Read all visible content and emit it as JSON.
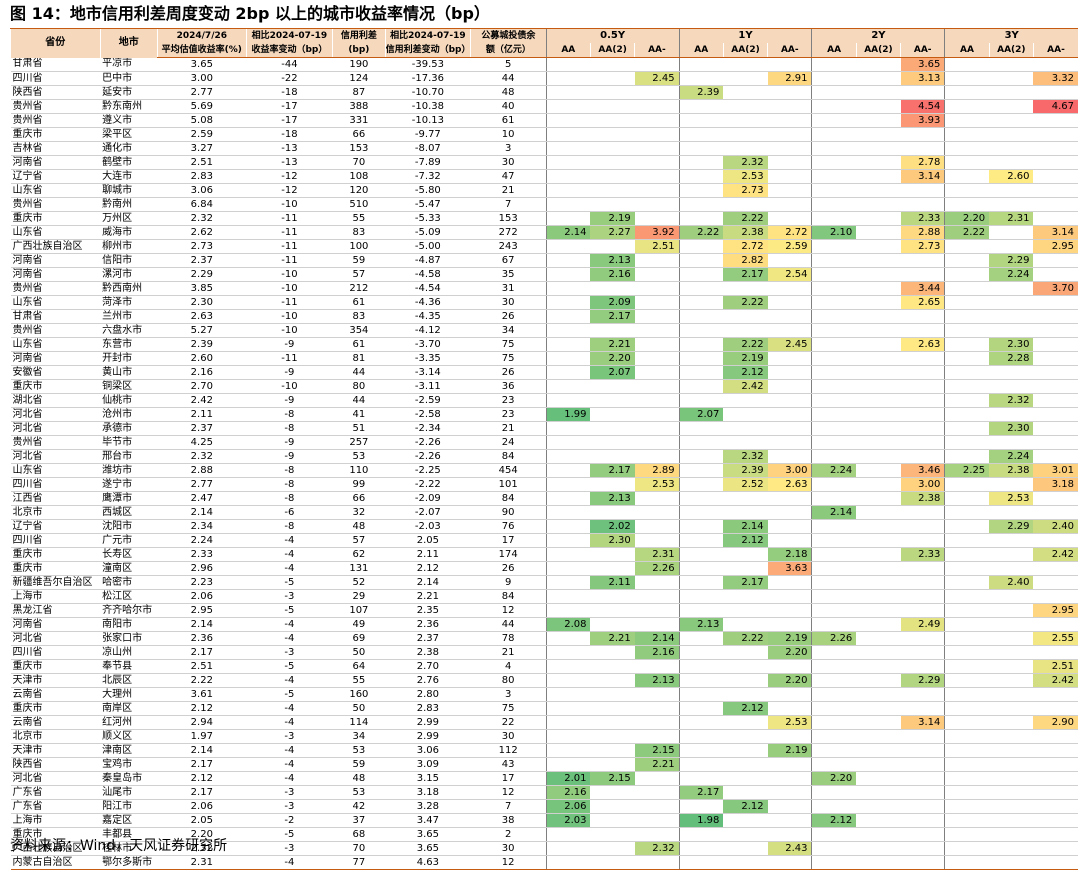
{
  "title": "图 14：地市信用利差周度变动 2bp 以上的城市收益率情况（bp）",
  "source": "资料来源：Wind，天风证券研究所",
  "colors": {
    "header_bg": "#f6d8bd",
    "border": "#c55a11",
    "low": "#63be7b",
    "mid": "#ffeb84",
    "high": "#f8696b"
  },
  "chart_data": {
    "type": "table",
    "headers": {
      "province": "省份",
      "city": "地市",
      "date_col_top": "2024/7/26",
      "yield_col": "平均估值收益率(%)",
      "chg_col_top": "相比2024-07-19",
      "yield_chg_col": "收益率变动（bp）",
      "spread_col_top": "信用利差",
      "spread_col": "(bp)",
      "spread_chg_col_top": "相比2024-07-19",
      "spread_chg_col": "信用利差变动（bp）",
      "bond_bal_col_top": "公募城投债余",
      "bond_bal_col": "额（亿元）",
      "groups": [
        "0.5Y",
        "1Y",
        "2Y",
        "3Y"
      ],
      "ratings": [
        "AA",
        "AA(2)",
        "AA-"
      ]
    },
    "color_scale": {
      "min": 1.98,
      "mid": 2.6,
      "max": 4.67
    },
    "rows": [
      [
        "甘肃省",
        "平凉市",
        3.65,
        -44,
        190,
        -39.53,
        5,
        [
          null,
          null,
          null,
          null,
          null,
          null,
          null,
          null,
          3.65,
          null,
          null,
          null
        ]
      ],
      [
        "四川省",
        "巴中市",
        3.0,
        -22,
        124,
        -17.36,
        44,
        [
          null,
          null,
          2.45,
          null,
          null,
          2.91,
          null,
          null,
          3.13,
          null,
          null,
          3.32
        ]
      ],
      [
        "陕西省",
        "延安市",
        2.77,
        -18,
        87,
        -10.7,
        48,
        [
          null,
          null,
          null,
          2.39,
          null,
          null,
          null,
          null,
          null,
          null,
          null,
          null
        ]
      ],
      [
        "贵州省",
        "黔东南州",
        5.69,
        -17,
        388,
        -10.38,
        40,
        [
          null,
          null,
          null,
          null,
          null,
          null,
          null,
          null,
          4.54,
          null,
          null,
          4.67
        ]
      ],
      [
        "贵州省",
        "遵义市",
        5.08,
        -17,
        331,
        -10.13,
        61,
        [
          null,
          null,
          null,
          null,
          null,
          null,
          null,
          null,
          3.93,
          null,
          null,
          null
        ]
      ],
      [
        "重庆市",
        "梁平区",
        2.59,
        -18,
        66,
        -9.77,
        10,
        [
          null,
          null,
          null,
          null,
          null,
          null,
          null,
          null,
          null,
          null,
          null,
          null
        ]
      ],
      [
        "吉林省",
        "通化市",
        3.27,
        -13,
        153,
        -8.07,
        3,
        [
          null,
          null,
          null,
          null,
          null,
          null,
          null,
          null,
          null,
          null,
          null,
          null
        ]
      ],
      [
        "河南省",
        "鹤壁市",
        2.51,
        -13,
        70,
        -7.89,
        30,
        [
          null,
          null,
          null,
          null,
          2.32,
          null,
          null,
          null,
          2.78,
          null,
          null,
          null
        ]
      ],
      [
        "辽宁省",
        "大连市",
        2.83,
        -12,
        108,
        -7.32,
        47,
        [
          null,
          null,
          null,
          null,
          2.53,
          null,
          null,
          null,
          3.14,
          null,
          2.6,
          null
        ]
      ],
      [
        "山东省",
        "聊城市",
        3.06,
        -12,
        120,
        -5.8,
        21,
        [
          null,
          null,
          null,
          null,
          2.73,
          null,
          null,
          null,
          null,
          null,
          null,
          null
        ]
      ],
      [
        "贵州省",
        "黔南州",
        6.84,
        -10,
        510,
        -5.47,
        7,
        [
          null,
          null,
          null,
          null,
          null,
          null,
          null,
          null,
          null,
          null,
          null,
          null
        ]
      ],
      [
        "重庆市",
        "万州区",
        2.32,
        -11,
        55,
        -5.33,
        153,
        [
          null,
          2.19,
          null,
          null,
          2.22,
          null,
          null,
          null,
          2.33,
          2.2,
          2.31,
          null
        ]
      ],
      [
        "山东省",
        "威海市",
        2.62,
        -11,
        83,
        -5.09,
        272,
        [
          2.14,
          2.27,
          3.92,
          2.22,
          2.38,
          2.72,
          2.1,
          null,
          2.88,
          2.22,
          null,
          3.14
        ]
      ],
      [
        "广西壮族自治区",
        "柳州市",
        2.73,
        -11,
        100,
        -5.0,
        243,
        [
          null,
          null,
          2.51,
          null,
          2.72,
          2.59,
          null,
          null,
          2.73,
          null,
          null,
          2.95
        ]
      ],
      [
        "河南省",
        "信阳市",
        2.37,
        -11,
        59,
        -4.87,
        67,
        [
          null,
          2.13,
          null,
          null,
          2.82,
          null,
          null,
          null,
          null,
          null,
          2.29,
          null
        ]
      ],
      [
        "河南省",
        "漯河市",
        2.29,
        -10,
        57,
        -4.58,
        35,
        [
          null,
          2.16,
          null,
          null,
          2.17,
          2.54,
          null,
          null,
          null,
          null,
          2.24,
          null
        ]
      ],
      [
        "贵州省",
        "黔西南州",
        3.85,
        -10,
        212,
        -4.54,
        31,
        [
          null,
          null,
          null,
          null,
          null,
          null,
          null,
          null,
          3.44,
          null,
          null,
          3.7
        ]
      ],
      [
        "山东省",
        "菏泽市",
        2.3,
        -11,
        61,
        -4.36,
        30,
        [
          null,
          2.09,
          null,
          null,
          2.22,
          null,
          null,
          null,
          2.65,
          null,
          null,
          null
        ]
      ],
      [
        "甘肃省",
        "兰州市",
        2.63,
        -10,
        83,
        -4.35,
        26,
        [
          null,
          2.17,
          null,
          null,
          null,
          null,
          null,
          null,
          null,
          null,
          null,
          null
        ]
      ],
      [
        "贵州省",
        "六盘水市",
        5.27,
        -10,
        354,
        -4.12,
        34,
        [
          null,
          null,
          null,
          null,
          null,
          null,
          null,
          null,
          null,
          null,
          null,
          null
        ]
      ],
      [
        "山东省",
        "东营市",
        2.39,
        -9,
        61,
        -3.7,
        75,
        [
          null,
          2.21,
          null,
          null,
          2.22,
          2.45,
          null,
          null,
          2.63,
          null,
          2.3,
          null
        ]
      ],
      [
        "河南省",
        "开封市",
        2.6,
        -11,
        81,
        -3.35,
        75,
        [
          null,
          2.2,
          null,
          null,
          2.19,
          null,
          null,
          null,
          null,
          null,
          2.28,
          null
        ]
      ],
      [
        "安徽省",
        "黄山市",
        2.16,
        -9,
        44,
        -3.14,
        26,
        [
          null,
          2.07,
          null,
          null,
          2.12,
          null,
          null,
          null,
          null,
          null,
          null,
          null
        ]
      ],
      [
        "重庆市",
        "铜梁区",
        2.7,
        -10,
        80,
        -3.11,
        36,
        [
          null,
          null,
          null,
          null,
          2.42,
          null,
          null,
          null,
          null,
          null,
          null,
          null
        ]
      ],
      [
        "湖北省",
        "仙桃市",
        2.42,
        -9,
        44,
        -2.59,
        23,
        [
          null,
          null,
          null,
          null,
          null,
          null,
          null,
          null,
          null,
          null,
          2.32,
          null
        ]
      ],
      [
        "河北省",
        "沧州市",
        2.11,
        -8,
        41,
        -2.58,
        23,
        [
          1.99,
          null,
          null,
          2.07,
          null,
          null,
          null,
          null,
          null,
          null,
          null,
          null
        ]
      ],
      [
        "河北省",
        "承德市",
        2.37,
        -8,
        51,
        -2.34,
        21,
        [
          null,
          null,
          null,
          null,
          null,
          null,
          null,
          null,
          null,
          null,
          2.3,
          null
        ]
      ],
      [
        "贵州省",
        "毕节市",
        4.25,
        -9,
        257,
        -2.26,
        24,
        [
          null,
          null,
          null,
          null,
          null,
          null,
          null,
          null,
          null,
          null,
          null,
          null
        ]
      ],
      [
        "河北省",
        "邢台市",
        2.32,
        -9,
        53,
        -2.26,
        84,
        [
          null,
          null,
          null,
          null,
          2.32,
          null,
          null,
          null,
          null,
          null,
          2.24,
          null
        ]
      ],
      [
        "山东省",
        "潍坊市",
        2.88,
        -8,
        110,
        -2.25,
        454,
        [
          null,
          2.17,
          2.89,
          null,
          2.39,
          3.0,
          2.24,
          null,
          3.46,
          2.25,
          2.38,
          3.01
        ]
      ],
      [
        "四川省",
        "遂宁市",
        2.77,
        -8,
        99,
        -2.22,
        101,
        [
          null,
          null,
          2.53,
          null,
          2.52,
          2.63,
          null,
          null,
          3.0,
          null,
          null,
          3.18
        ]
      ],
      [
        "江西省",
        "鹰潭市",
        2.47,
        -8,
        66,
        -2.09,
        84,
        [
          null,
          2.13,
          null,
          null,
          null,
          null,
          null,
          null,
          2.38,
          null,
          2.53,
          null
        ]
      ],
      [
        "北京市",
        "西城区",
        2.14,
        -6,
        32,
        -2.07,
        90,
        [
          null,
          null,
          null,
          null,
          null,
          null,
          2.14,
          null,
          null,
          null,
          null,
          null
        ]
      ],
      [
        "辽宁省",
        "沈阳市",
        2.34,
        -8,
        48,
        -2.03,
        76,
        [
          null,
          2.02,
          null,
          null,
          2.14,
          null,
          null,
          null,
          null,
          null,
          2.29,
          2.4
        ]
      ],
      [
        "四川省",
        "广元市",
        2.24,
        -4,
        57,
        2.05,
        17,
        [
          null,
          2.3,
          null,
          null,
          2.12,
          null,
          null,
          null,
          null,
          null,
          null,
          null
        ]
      ],
      [
        "重庆市",
        "长寿区",
        2.33,
        -4,
        62,
        2.11,
        174,
        [
          null,
          null,
          2.31,
          null,
          null,
          2.18,
          null,
          null,
          2.33,
          null,
          null,
          2.42
        ]
      ],
      [
        "重庆市",
        "潼南区",
        2.96,
        -4,
        131,
        2.12,
        26,
        [
          null,
          null,
          2.26,
          null,
          null,
          3.63,
          null,
          null,
          null,
          null,
          null,
          null
        ]
      ],
      [
        "新疆维吾尔自治区",
        "哈密市",
        2.23,
        -5,
        52,
        2.14,
        9,
        [
          null,
          2.11,
          null,
          null,
          2.17,
          null,
          null,
          null,
          null,
          null,
          2.4,
          null
        ]
      ],
      [
        "上海市",
        "松江区",
        2.06,
        -3,
        29,
        2.21,
        84,
        [
          null,
          null,
          null,
          null,
          null,
          null,
          null,
          null,
          null,
          null,
          null,
          null
        ]
      ],
      [
        "黑龙江省",
        "齐齐哈尔市",
        2.95,
        -5,
        107,
        2.35,
        12,
        [
          null,
          null,
          null,
          null,
          null,
          null,
          null,
          null,
          null,
          null,
          null,
          2.95
        ]
      ],
      [
        "河南省",
        "南阳市",
        2.14,
        -4,
        49,
        2.36,
        44,
        [
          2.08,
          null,
          null,
          2.13,
          null,
          null,
          null,
          null,
          2.49,
          null,
          null,
          null
        ]
      ],
      [
        "河北省",
        "张家口市",
        2.36,
        -4,
        69,
        2.37,
        78,
        [
          null,
          2.21,
          2.14,
          null,
          2.22,
          2.19,
          2.26,
          null,
          null,
          null,
          null,
          2.55
        ]
      ],
      [
        "四川省",
        "凉山州",
        2.17,
        -3,
        50,
        2.38,
        21,
        [
          null,
          null,
          2.16,
          null,
          null,
          2.2,
          null,
          null,
          null,
          null,
          null,
          null
        ]
      ],
      [
        "重庆市",
        "奉节县",
        2.51,
        -5,
        64,
        2.7,
        4,
        [
          null,
          null,
          null,
          null,
          null,
          null,
          null,
          null,
          null,
          null,
          null,
          2.51
        ]
      ],
      [
        "天津市",
        "北辰区",
        2.22,
        -4,
        55,
        2.76,
        80,
        [
          null,
          null,
          2.13,
          null,
          null,
          2.2,
          null,
          null,
          2.29,
          null,
          null,
          2.42
        ]
      ],
      [
        "云南省",
        "大理州",
        3.61,
        -5,
        160,
        2.8,
        3,
        [
          null,
          null,
          null,
          null,
          null,
          null,
          null,
          null,
          null,
          null,
          null,
          null
        ]
      ],
      [
        "重庆市",
        "南岸区",
        2.12,
        -4,
        50,
        2.83,
        75,
        [
          null,
          null,
          null,
          null,
          2.12,
          null,
          null,
          null,
          null,
          null,
          null,
          null
        ]
      ],
      [
        "云南省",
        "红河州",
        2.94,
        -4,
        114,
        2.99,
        22,
        [
          null,
          null,
          null,
          null,
          null,
          2.53,
          null,
          null,
          3.14,
          null,
          null,
          2.9
        ]
      ],
      [
        "北京市",
        "顺义区",
        1.97,
        -3,
        34,
        2.99,
        30,
        [
          null,
          null,
          null,
          null,
          null,
          null,
          null,
          null,
          null,
          null,
          null,
          null
        ]
      ],
      [
        "天津市",
        "津南区",
        2.14,
        -4,
        53,
        3.06,
        112,
        [
          null,
          null,
          2.15,
          null,
          null,
          2.19,
          null,
          null,
          null,
          null,
          null,
          null
        ]
      ],
      [
        "陕西省",
        "宝鸡市",
        2.17,
        -4,
        59,
        3.09,
        43,
        [
          null,
          null,
          2.21,
          null,
          null,
          null,
          null,
          null,
          null,
          null,
          null,
          null
        ]
      ],
      [
        "河北省",
        "秦皇岛市",
        2.12,
        -4,
        48,
        3.15,
        17,
        [
          2.01,
          2.15,
          null,
          null,
          null,
          null,
          2.2,
          null,
          null,
          null,
          null,
          null
        ]
      ],
      [
        "广东省",
        "汕尾市",
        2.17,
        -3,
        53,
        3.18,
        12,
        [
          2.16,
          null,
          null,
          2.17,
          null,
          null,
          null,
          null,
          null,
          null,
          null,
          null
        ]
      ],
      [
        "广东省",
        "阳江市",
        2.06,
        -3,
        42,
        3.28,
        7,
        [
          2.06,
          null,
          null,
          null,
          2.12,
          null,
          null,
          null,
          null,
          null,
          null,
          null
        ]
      ],
      [
        "上海市",
        "嘉定区",
        2.05,
        -2,
        37,
        3.47,
        38,
        [
          2.03,
          null,
          null,
          1.98,
          null,
          null,
          2.12,
          null,
          null,
          null,
          null,
          null
        ]
      ],
      [
        "重庆市",
        "丰都县",
        2.2,
        -5,
        68,
        3.65,
        2,
        [
          null,
          null,
          null,
          null,
          null,
          null,
          null,
          null,
          null,
          null,
          null,
          null
        ]
      ],
      [
        "广西壮族自治区",
        "桂林市",
        2.32,
        -3,
        70,
        3.65,
        30,
        [
          null,
          null,
          2.32,
          null,
          null,
          2.43,
          null,
          null,
          null,
          null,
          null,
          null
        ]
      ],
      [
        "内蒙古自治区",
        "鄂尔多斯市",
        2.31,
        -4,
        77,
        4.63,
        12,
        [
          null,
          null,
          null,
          null,
          null,
          null,
          null,
          null,
          null,
          null,
          null,
          null
        ]
      ]
    ]
  }
}
